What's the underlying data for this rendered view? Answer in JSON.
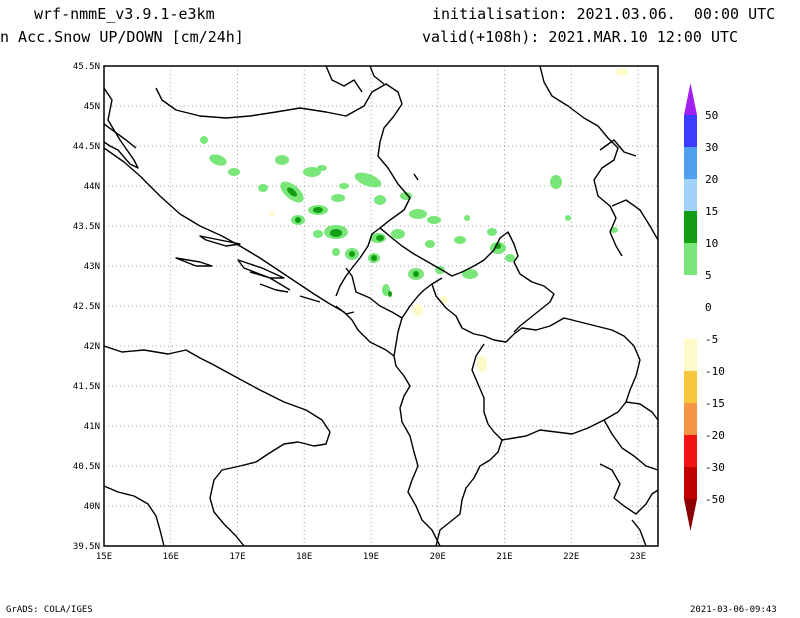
{
  "header": {
    "model": "wrf-nmmE_v3.9.1-e3km",
    "product": "n Acc.Snow UP/DOWN [cm/24h]",
    "init": "initialisation: 2021.03.06.  00:00 UTC",
    "valid": "valid(+108h): 2021.MAR.10 12:00 UTC"
  },
  "map": {
    "lat_labels": [
      "45.5N",
      "45N",
      "44.5N",
      "44N",
      "43.5N",
      "43N",
      "42.5N",
      "42N",
      "41.5N",
      "41N",
      "40.5N",
      "40N",
      "39.5N"
    ],
    "lon_labels": [
      "15E",
      "16E",
      "17E",
      "18E",
      "19E",
      "20E",
      "21E",
      "22E",
      "23E"
    ],
    "lat_range": [
      39.5,
      45.5
    ],
    "lon_range": [
      15.0,
      23.3
    ],
    "grid": "dotted"
  },
  "legend": {
    "levels": [
      {
        "label": "50",
        "color": "#3c3cff"
      },
      {
        "label": "30",
        "color": "#50a0f0"
      },
      {
        "label": "20",
        "color": "#a0d2fa"
      },
      {
        "label": "15",
        "color": "#139d13"
      },
      {
        "label": "10",
        "color": "#78e678"
      },
      {
        "label": "5",
        "color": "#ffffff"
      },
      {
        "label": "0",
        "color": "#ffffff"
      },
      {
        "label": "-5",
        "color": "#fffac8"
      },
      {
        "label": "-10",
        "color": "#f5c83c"
      },
      {
        "label": "-15",
        "color": "#f59646"
      },
      {
        "label": "-20",
        "color": "#f01414"
      },
      {
        "label": "-30",
        "color": "#c00000"
      },
      {
        "label": "-50",
        "color": "#a00000"
      }
    ],
    "top_arrow_color": "#a020f0",
    "bottom_arrow_color": "#8b0000"
  },
  "footer": {
    "left": "GrADS: COLA/IGES",
    "right": "2021-03-06-09:43"
  }
}
